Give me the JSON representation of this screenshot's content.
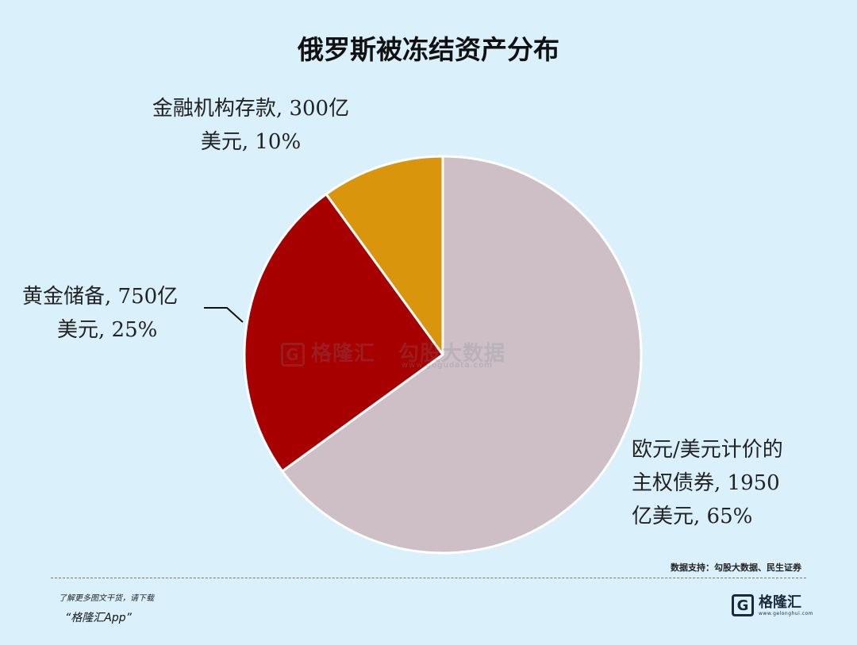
{
  "title": "俄罗斯被冻结资产分布",
  "chart_data": {
    "type": "pie",
    "slices": [
      {
        "label_line1": "欧元/美元计价的",
        "label_line2": "主权债券, 1950",
        "label_line3": "亿美元, 65%",
        "value": 1950,
        "percent": 65,
        "color": "#cdbfc5"
      },
      {
        "label_line1": "黄金储备, 750亿",
        "label_line2": "美元, 25%",
        "value": 750,
        "percent": 25,
        "color": "#a60000"
      },
      {
        "label_line1": "金融机构存款, 300亿",
        "label_line2": "美元, 10%",
        "value": 300,
        "percent": 10,
        "color": "#d9950c"
      }
    ]
  },
  "watermark": {
    "logo_text": "格隆汇",
    "data_text": "勾股大数据",
    "url": "www.gogudata.com"
  },
  "source": "数据支持：勾股大数据、民生证券",
  "footer": {
    "promo_line1": "了解更多图文干货，请下载",
    "promo_line2": "“格隆汇App”",
    "brand_name": "格隆汇",
    "brand_url": "www.gelonghui.com",
    "brand_icon": "G"
  }
}
